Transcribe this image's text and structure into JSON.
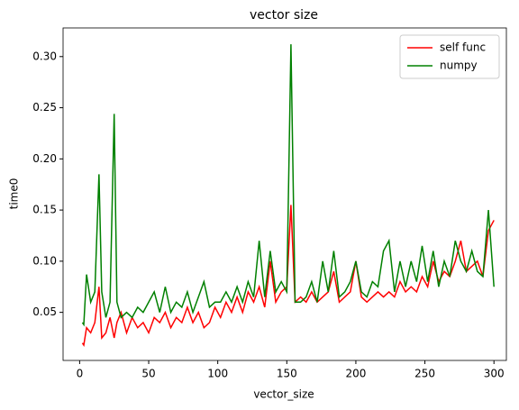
{
  "chart_data": {
    "type": "line",
    "title": "vector size",
    "x_label": "vector_size",
    "y_label": "time0",
    "x": [
      2,
      3,
      5,
      8,
      11,
      14,
      16,
      19,
      22,
      25,
      27,
      30,
      34,
      38,
      42,
      46,
      50,
      54,
      58,
      62,
      66,
      70,
      74,
      78,
      82,
      86,
      90,
      94,
      98,
      102,
      106,
      110,
      114,
      118,
      122,
      126,
      130,
      134,
      138,
      142,
      146,
      150,
      153,
      156,
      160,
      164,
      168,
      172,
      176,
      180,
      184,
      188,
      192,
      196,
      200,
      204,
      208,
      212,
      216,
      220,
      224,
      228,
      232,
      236,
      240,
      244,
      248,
      252,
      256,
      260,
      264,
      268,
      272,
      276,
      280,
      284,
      288,
      292,
      296,
      300
    ],
    "series": [
      {
        "name": "self func",
        "color": "#ff0000",
        "values": [
          0.02,
          0.018,
          0.035,
          0.03,
          0.04,
          0.075,
          0.025,
          0.03,
          0.045,
          0.025,
          0.04,
          0.05,
          0.03,
          0.045,
          0.035,
          0.04,
          0.03,
          0.045,
          0.04,
          0.05,
          0.035,
          0.045,
          0.04,
          0.055,
          0.04,
          0.05,
          0.035,
          0.04,
          0.055,
          0.045,
          0.06,
          0.05,
          0.065,
          0.05,
          0.07,
          0.06,
          0.075,
          0.055,
          0.1,
          0.06,
          0.07,
          0.075,
          0.155,
          0.06,
          0.065,
          0.06,
          0.07,
          0.06,
          0.065,
          0.07,
          0.09,
          0.06,
          0.065,
          0.07,
          0.1,
          0.065,
          0.06,
          0.065,
          0.07,
          0.065,
          0.07,
          0.065,
          0.08,
          0.07,
          0.075,
          0.07,
          0.085,
          0.075,
          0.1,
          0.08,
          0.09,
          0.085,
          0.1,
          0.12,
          0.09,
          0.095,
          0.1,
          0.085,
          0.13,
          0.14
        ]
      },
      {
        "name": "numpy",
        "color": "#008000",
        "values": [
          0.04,
          0.038,
          0.087,
          0.06,
          0.07,
          0.185,
          0.07,
          0.045,
          0.06,
          0.244,
          0.06,
          0.045,
          0.05,
          0.045,
          0.055,
          0.05,
          0.06,
          0.07,
          0.05,
          0.075,
          0.05,
          0.06,
          0.055,
          0.07,
          0.05,
          0.065,
          0.08,
          0.055,
          0.06,
          0.06,
          0.07,
          0.06,
          0.075,
          0.06,
          0.08,
          0.065,
          0.12,
          0.065,
          0.11,
          0.07,
          0.08,
          0.07,
          0.312,
          0.06,
          0.06,
          0.065,
          0.08,
          0.06,
          0.1,
          0.07,
          0.11,
          0.065,
          0.07,
          0.08,
          0.1,
          0.07,
          0.065,
          0.08,
          0.075,
          0.11,
          0.12,
          0.07,
          0.1,
          0.075,
          0.1,
          0.08,
          0.115,
          0.08,
          0.11,
          0.075,
          0.1,
          0.085,
          0.12,
          0.1,
          0.09,
          0.11,
          0.09,
          0.085,
          0.15,
          0.075
        ]
      }
    ],
    "xlim": [
      -12,
      309
    ],
    "ylim": [
      0.003,
      0.328
    ],
    "xticks": [
      0,
      50,
      100,
      150,
      200,
      250,
      300
    ],
    "yticks": [
      0.05,
      {
        "value": 0.1,
        "label": "0.10"
      },
      0.15,
      {
        "value": 0.2,
        "label": "0.20"
      },
      0.25,
      {
        "value": 0.3,
        "label": "0.30"
      }
    ],
    "legend": "upper right"
  }
}
